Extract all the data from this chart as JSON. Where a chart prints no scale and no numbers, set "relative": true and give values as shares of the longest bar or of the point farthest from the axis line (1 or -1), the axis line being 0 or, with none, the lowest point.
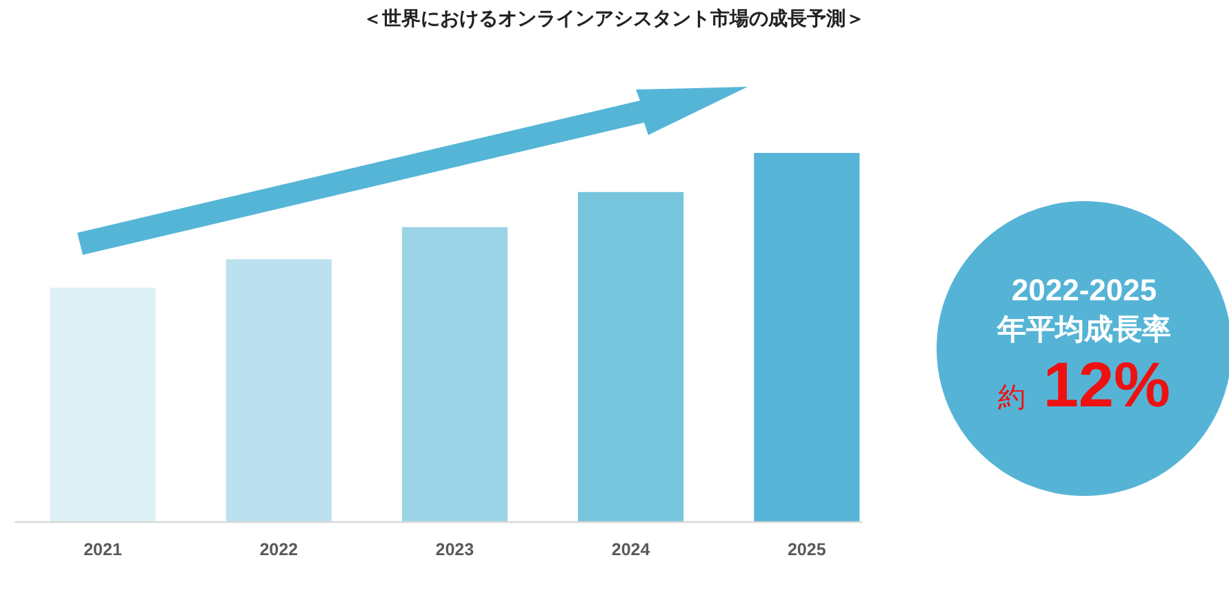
{
  "chart_data": {
    "type": "bar",
    "title": "＜世界におけるオンラインアシスタント市場の成長予測＞",
    "categories": [
      "2021",
      "2022",
      "2023",
      "2024",
      "2025"
    ],
    "relative": true,
    "values": [
      0.635,
      0.712,
      0.799,
      0.894,
      1
    ],
    "colors": [
      "#dcf0f5",
      "#bbe1ee",
      "#9bd4e6",
      "#77c4dd",
      "#56b5d7"
    ],
    "annotations": [
      "2022-2025",
      "年平均成長率",
      "約",
      "12%"
    ]
  }
}
